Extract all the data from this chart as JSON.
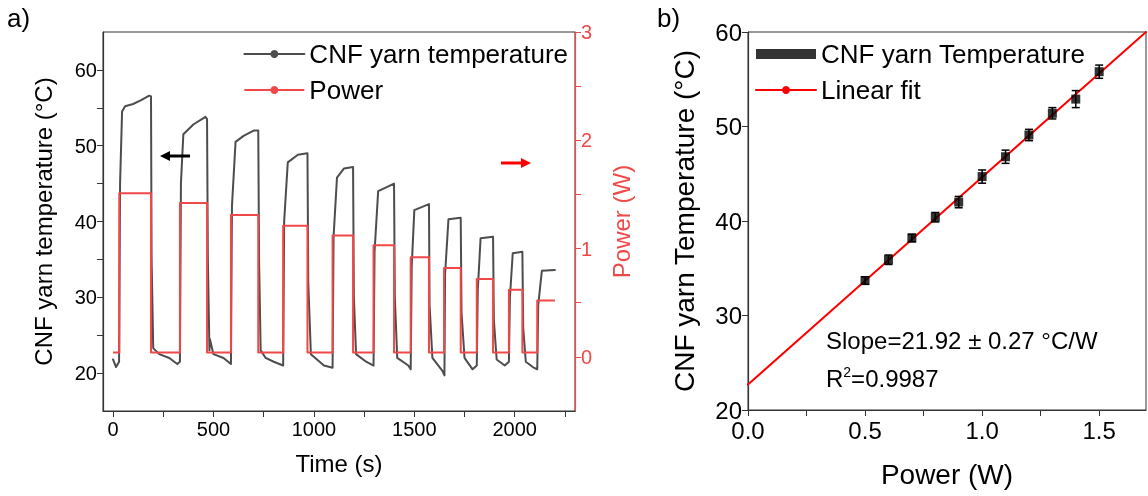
{
  "chart_data": [
    {
      "title": "a)",
      "type": "line",
      "xlabel": "Time (s)",
      "ylabel": "CNF yarn temperature (°C)",
      "y2label": "Power (W)",
      "xlim": [
        -50,
        2300
      ],
      "xticks": [
        0,
        {
          "value": 250,
          "label": null
        },
        500,
        {
          "value": 750,
          "label": null
        },
        1000,
        {
          "value": 1250,
          "label": null
        },
        1500,
        {
          "value": 1750,
          "label": null
        },
        2000,
        {
          "value": 2250,
          "label": null
        }
      ],
      "ylim": [
        15,
        65
      ],
      "yticks": [
        20,
        {
          "value": 25,
          "label": null
        },
        30,
        {
          "value": 35,
          "label": null
        },
        40,
        {
          "value": 45,
          "label": null
        },
        50,
        {
          "value": 55,
          "label": null
        },
        60
      ],
      "y2lim": [
        -0.5,
        3
      ],
      "y2ticks": [
        0,
        {
          "value": 0.5,
          "label": null
        },
        1,
        {
          "value": 1.5,
          "label": null
        },
        2,
        {
          "value": 2.5,
          "label": null
        },
        3
      ],
      "legend": "top right",
      "grid": false,
      "marker": "none",
      "series": [
        {
          "name": "CNF yarn temperature",
          "color": "#4d4d4d",
          "x": [
            0,
            15,
            30,
            35,
            45,
            60,
            100,
            140,
            180,
            189,
            192,
            200,
            230,
            280,
            320,
            333,
            338,
            350,
            400,
            460,
            468,
            472,
            480,
            482,
            500,
            550,
            587,
            592,
            610,
            650,
            700,
            723,
            727,
            735,
            760,
            800,
            847,
            852,
            870,
            920,
            968,
            972,
            985,
            1050,
            1093,
            1098,
            1115,
            1150,
            1195,
            1199,
            1210,
            1260,
            1297,
            1302,
            1320,
            1360,
            1399,
            1403,
            1415,
            1470,
            1482,
            1487,
            1500,
            1573,
            1576,
            1590,
            1640,
            1650,
            1653,
            1670,
            1731,
            1735,
            1750,
            1790,
            1811,
            1816,
            1830,
            1892,
            1896,
            1910,
            1950,
            1971,
            1976,
            1990,
            2038,
            2042,
            2055,
            2090,
            2112,
            2117,
            2135,
            2200
          ],
          "values": [
            21.8,
            20.8,
            21.5,
            45,
            54.5,
            55.2,
            55.5,
            56,
            56.6,
            56.5,
            35,
            23.3,
            22.5,
            22,
            21.2,
            21.5,
            45,
            51.5,
            52.8,
            53.8,
            53.5,
            35,
            23,
            24.5,
            22.5,
            22,
            21.2,
            42,
            50.5,
            51.3,
            52,
            52,
            35,
            23,
            22,
            21.5,
            21,
            40,
            47.8,
            48.8,
            49,
            32,
            22.5,
            21,
            20.7,
            38,
            45.8,
            47,
            47.2,
            30,
            22.5,
            21.5,
            21,
            36,
            44,
            44.5,
            45,
            30,
            22,
            21,
            20.5,
            34,
            41.5,
            42.3,
            29,
            22,
            20.3,
            19.7,
            33,
            40.3,
            40.5,
            28,
            22,
            20.5,
            21,
            31,
            37.8,
            38,
            27,
            21.8,
            21,
            21.5,
            30,
            35.8,
            36,
            26,
            21.5,
            20.8,
            20.5,
            29,
            33.5,
            33.6
          ]
        },
        {
          "name": "Power",
          "type": "step",
          "axis": "y2",
          "color": "#f04848",
          "x": [
            0,
            31,
            189,
            333,
            468,
            587,
            723,
            847,
            968,
            1093,
            1195,
            1297,
            1399,
            1482,
            1573,
            1648,
            1731,
            1811,
            1892,
            1971,
            2038,
            2112,
            2200
          ],
          "values": [
            0.04,
            1.51,
            0.04,
            1.42,
            0.04,
            1.31,
            0.04,
            1.21,
            0.04,
            1.12,
            0.04,
            1.03,
            0.04,
            0.92,
            0.04,
            0.82,
            0.04,
            0.72,
            0.04,
            0.62,
            0.04,
            0.52,
            0.52
          ]
        }
      ]
    },
    {
      "title": "b)",
      "type": "scatter",
      "xlabel": "Power (W)",
      "ylabel": "CNF yarn Temperature (°C)",
      "xlim": [
        0,
        1.7
      ],
      "xticks": [
        {
          "value": 0,
          "label": "0.0"
        },
        {
          "value": 0.25,
          "label": null
        },
        {
          "value": 0.5,
          "label": "0.5"
        },
        {
          "value": 0.75,
          "label": null
        },
        {
          "value": 1,
          "label": "1.0"
        },
        {
          "value": 1.25,
          "label": null
        },
        {
          "value": 1.5,
          "label": "1.5"
        }
      ],
      "ylim": [
        20,
        60
      ],
      "yticks": [
        20,
        30,
        40,
        50,
        60
      ],
      "legend": "top left",
      "grid": false,
      "marker": "square",
      "annotations": [
        "Slope=21.92 ± 0.27 °C/W",
        "R$^{2}$=0.9987"
      ],
      "series": [
        {
          "name": "CNF yarn Temperature",
          "color": "#000000",
          "x": [
            0.5,
            0.6,
            0.7,
            0.8,
            0.9,
            1.0,
            1.1,
            1.2,
            1.3,
            1.4,
            1.5
          ],
          "values": [
            33.7,
            35.9,
            38.2,
            40.4,
            42.0,
            44.7,
            46.8,
            49.1,
            51.4,
            52.9,
            55.8
          ],
          "errors": [
            0.4,
            0.5,
            0.4,
            0.5,
            0.6,
            0.7,
            0.7,
            0.6,
            0.6,
            0.9,
            0.7
          ]
        },
        {
          "name": "Linear fit",
          "type": "line",
          "marker": "none",
          "color": "#ff0000",
          "x": [
            0,
            1.7
          ],
          "values": [
            22.7,
            60.0
          ]
        }
      ]
    }
  ]
}
